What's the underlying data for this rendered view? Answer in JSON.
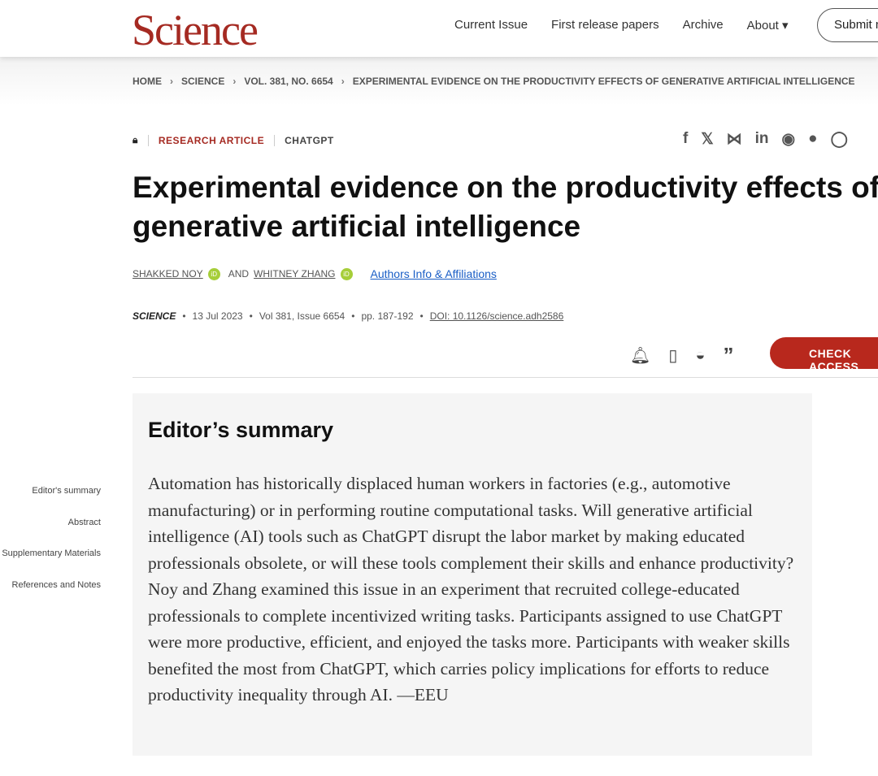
{
  "header": {
    "logo": "Science",
    "nav": [
      "Current Issue",
      "First release papers",
      "Archive",
      "About ▾"
    ],
    "submit": "Submit m"
  },
  "breadcrumb": [
    "HOME",
    "SCIENCE",
    "VOL. 381, NO. 6654",
    "EXPERIMENTAL EVIDENCE ON THE PRODUCTIVITY EFFECTS OF GENERATIVE ARTIFICIAL INTELLIGENCE"
  ],
  "tags": {
    "type": "RESEARCH ARTICLE",
    "topic": "CHATGPT"
  },
  "share_icons": [
    "facebook-icon",
    "x-icon",
    "bluesky-icon",
    "linkedin-icon",
    "reddit-icon",
    "wechat-icon",
    "whatsapp-icon"
  ],
  "title": "Experimental evidence on the productivity effects of generative artificial intelligence",
  "authors": {
    "a1": "SHAKKED NOY",
    "and": "AND",
    "a2": "WHITNEY ZHANG",
    "affiliations": "Authors Info & Affiliations"
  },
  "meta": {
    "journal": "SCIENCE",
    "date": "13 Jul 2023",
    "volume": "Vol 381, Issue 6654",
    "pages": "pp. 187-192",
    "doi": "DOI: 10.1126/science.adh2586"
  },
  "check_access": "CHECK ACCESS",
  "toc": [
    "Editor's summary",
    "Abstract",
    "Supplementary Materials",
    "References and Notes"
  ],
  "summary": {
    "heading": "Editor’s summary",
    "text": "Automation has historically displaced human workers in factories (e.g., automotive manufacturing) or in performing routine computational tasks. Will generative artificial intelligence (AI) tools such as ChatGPT disrupt the labor market by making educated professionals obsolete, or will these tools complement their skills and enhance productivity? Noy and Zhang examined this issue in an experiment that recruited college-educated professionals to complete incentivized writing tasks. Participants assigned to use ChatGPT were more productive, efficient, and enjoyed the tasks more. Participants with weaker skills benefited the most from ChatGPT, which carries policy implications for efforts to reduce productivity inequality through AI. —EEU"
  },
  "colors": {
    "brand": "#a52a22",
    "button": "#b8281d",
    "link": "#1a5ec6"
  }
}
